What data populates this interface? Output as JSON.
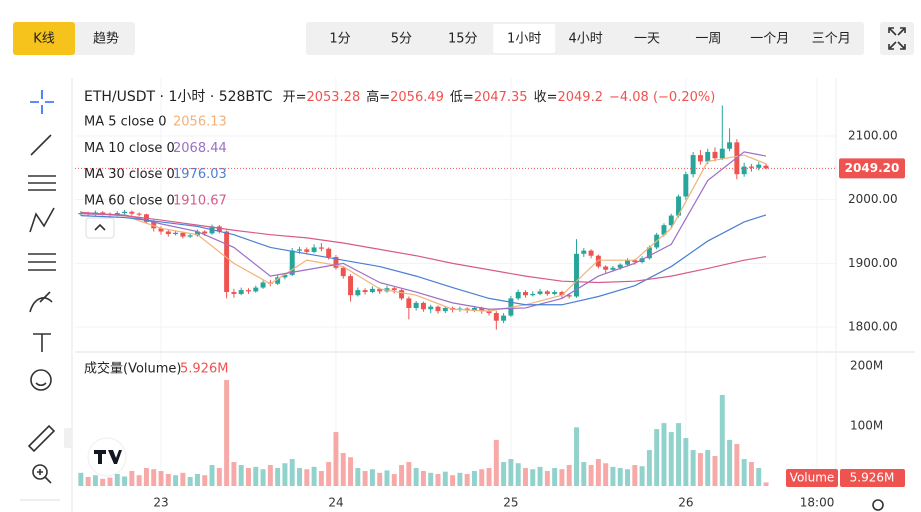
{
  "tabs": {
    "modes": [
      "K线",
      "趋势"
    ],
    "active_mode": 0,
    "timeframes": [
      "1分",
      "5分",
      "15分",
      "1小时",
      "4小时",
      "一天",
      "一周",
      "一个月",
      "三个月"
    ],
    "active_timeframe": 3
  },
  "chart_data": {
    "type": "candlestick",
    "header": {
      "symbol": "ETH/USDT · 1小时 · 528BTC",
      "ohlc_labels": [
        "开=",
        "高=",
        "低=",
        "收="
      ],
      "change": "−4.08 (−0.20%)"
    },
    "up_color": "#26a69a",
    "down_color": "#ef5350",
    "xlim": [
      -0.8,
      103.6
    ],
    "xticks": [
      {
        "value": 11,
        "label": "23"
      },
      {
        "value": 35,
        "label": "24"
      },
      {
        "value": 59,
        "label": "25"
      },
      {
        "value": 83,
        "label": "26"
      },
      {
        "value": 101,
        "label": "18:00"
      }
    ],
    "ylim": [
      1764,
      2191
    ],
    "yticks": [
      {
        "value": 1800,
        "label": "1800.00"
      },
      {
        "value": 1900,
        "label": "1900.00"
      },
      {
        "value": 2000,
        "label": "2000.00"
      },
      {
        "value": 2100,
        "label": "2100.00"
      }
    ],
    "grid": true,
    "last_price_label": "2049.20",
    "candles": [
      [
        1977,
        1982,
        1975,
        1979
      ],
      [
        1979,
        1981,
        1974,
        1977
      ],
      [
        1977,
        1983,
        1975,
        1980
      ],
      [
        1980,
        1982,
        1975,
        1978
      ],
      [
        1978,
        1980,
        1973,
        1976
      ],
      [
        1976,
        1982,
        1974,
        1979
      ],
      [
        1979,
        1984,
        1977,
        1981
      ],
      [
        1981,
        1983,
        1975,
        1978
      ],
      [
        1978,
        1980,
        1974,
        1977
      ],
      [
        1977,
        1978,
        1962,
        1965
      ],
      [
        1965,
        1968,
        1950,
        1955
      ],
      [
        1955,
        1958,
        1945,
        1950
      ],
      [
        1950,
        1953,
        1942,
        1946
      ],
      [
        1946,
        1951,
        1944,
        1948
      ],
      [
        1948,
        1950,
        1939,
        1942
      ],
      [
        1942,
        1947,
        1940,
        1944
      ],
      [
        1944,
        1953,
        1942,
        1950
      ],
      [
        1950,
        1952,
        1943,
        1947
      ],
      [
        1947,
        1961,
        1945,
        1958
      ],
      [
        1958,
        1960,
        1947,
        1950
      ],
      [
        1950,
        1952,
        1845,
        1855
      ],
      [
        1855,
        1860,
        1846,
        1852
      ],
      [
        1852,
        1862,
        1850,
        1858
      ],
      [
        1858,
        1861,
        1852,
        1856
      ],
      [
        1856,
        1865,
        1854,
        1862
      ],
      [
        1862,
        1873,
        1860,
        1870
      ],
      [
        1870,
        1874,
        1864,
        1868
      ],
      [
        1868,
        1881,
        1866,
        1878
      ],
      [
        1878,
        1885,
        1875,
        1882
      ],
      [
        1882,
        1924,
        1880,
        1920
      ],
      [
        1920,
        1926,
        1915,
        1922
      ],
      [
        1922,
        1925,
        1914,
        1918
      ],
      [
        1918,
        1930,
        1916,
        1925
      ],
      [
        1925,
        1932,
        1919,
        1923
      ],
      [
        1923,
        1925,
        1906,
        1910
      ],
      [
        1910,
        1913,
        1890,
        1893
      ],
      [
        1893,
        1896,
        1876,
        1880
      ],
      [
        1880,
        1883,
        1840,
        1850
      ],
      [
        1850,
        1862,
        1848,
        1858
      ],
      [
        1858,
        1861,
        1851,
        1855
      ],
      [
        1855,
        1864,
        1853,
        1860
      ],
      [
        1860,
        1862,
        1852,
        1856
      ],
      [
        1856,
        1865,
        1854,
        1861
      ],
      [
        1861,
        1863,
        1853,
        1858
      ],
      [
        1858,
        1860,
        1842,
        1845
      ],
      [
        1845,
        1848,
        1812,
        1830
      ],
      [
        1830,
        1841,
        1826,
        1838
      ],
      [
        1838,
        1840,
        1824,
        1828
      ],
      [
        1828,
        1835,
        1822,
        1832
      ],
      [
        1832,
        1834,
        1821,
        1825
      ],
      [
        1825,
        1833,
        1822,
        1830
      ],
      [
        1830,
        1832,
        1823,
        1827
      ],
      [
        1827,
        1832,
        1824,
        1829
      ],
      [
        1829,
        1831,
        1822,
        1826
      ],
      [
        1826,
        1833,
        1824,
        1830
      ],
      [
        1830,
        1832,
        1821,
        1825
      ],
      [
        1825,
        1828,
        1818,
        1822
      ],
      [
        1822,
        1825,
        1796,
        1810
      ],
      [
        1810,
        1822,
        1806,
        1818
      ],
      [
        1818,
        1849,
        1816,
        1845
      ],
      [
        1845,
        1859,
        1842,
        1855
      ],
      [
        1855,
        1858,
        1846,
        1850
      ],
      [
        1850,
        1856,
        1848,
        1852
      ],
      [
        1852,
        1860,
        1850,
        1856
      ],
      [
        1856,
        1858,
        1849,
        1852
      ],
      [
        1852,
        1858,
        1850,
        1855
      ],
      [
        1855,
        1857,
        1846,
        1850
      ],
      [
        1850,
        1853,
        1845,
        1848
      ],
      [
        1848,
        1938,
        1846,
        1915
      ],
      [
        1915,
        1924,
        1910,
        1920
      ],
      [
        1920,
        1922,
        1908,
        1912
      ],
      [
        1912,
        1914,
        1892,
        1895
      ],
      [
        1895,
        1897,
        1885,
        1890
      ],
      [
        1890,
        1896,
        1887,
        1893
      ],
      [
        1893,
        1900,
        1890,
        1898
      ],
      [
        1898,
        1908,
        1895,
        1905
      ],
      [
        1905,
        1907,
        1898,
        1902
      ],
      [
        1902,
        1911,
        1900,
        1908
      ],
      [
        1908,
        1928,
        1906,
        1925
      ],
      [
        1925,
        1948,
        1922,
        1945
      ],
      [
        1945,
        1963,
        1942,
        1960
      ],
      [
        1960,
        1978,
        1956,
        1975
      ],
      [
        1975,
        2008,
        1972,
        2005
      ],
      [
        2005,
        2044,
        2000,
        2040
      ],
      [
        2040,
        2075,
        2035,
        2070
      ],
      [
        2070,
        2078,
        2055,
        2060
      ],
      [
        2060,
        2080,
        2056,
        2075
      ],
      [
        2075,
        2082,
        2060,
        2065
      ],
      [
        2065,
        2148,
        2062,
        2080
      ],
      [
        2080,
        2112,
        2076,
        2090
      ],
      [
        2090,
        2095,
        2032,
        2040
      ],
      [
        2040,
        2058,
        2036,
        2052
      ],
      [
        2052,
        2056,
        2044,
        2050
      ],
      [
        2050,
        2059,
        2046,
        2055
      ],
      [
        2053.28,
        2056.49,
        2047.35,
        2049.2
      ]
    ],
    "series": [
      {
        "name": "MA 5 close 0",
        "color": "#f0b27a",
        "x": [
          0,
          6,
          11,
          16,
          21,
          26,
          31,
          36,
          41,
          46,
          51,
          56,
          61,
          66,
          71,
          76,
          81,
          86,
          91,
          94
        ],
        "values": [
          1978,
          1975,
          1955,
          1945,
          1900,
          1868,
          1905,
          1895,
          1860,
          1850,
          1828,
          1825,
          1835,
          1850,
          1905,
          1905,
          1955,
          2060,
          2070,
          2056.13
        ]
      },
      {
        "name": "MA 10 close 0",
        "color": "#9c6fc4",
        "x": [
          0,
          6,
          11,
          16,
          21,
          26,
          31,
          36,
          41,
          46,
          51,
          56,
          61,
          66,
          71,
          76,
          81,
          86,
          91,
          94
        ],
        "values": [
          1978,
          1976,
          1962,
          1950,
          1925,
          1880,
          1890,
          1900,
          1870,
          1855,
          1838,
          1828,
          1830,
          1845,
          1880,
          1900,
          1930,
          2030,
          2075,
          2068.44
        ]
      },
      {
        "name": "MA 30 close 0",
        "color": "#4a7fd4",
        "x": [
          0,
          6,
          11,
          16,
          21,
          26,
          31,
          36,
          41,
          46,
          51,
          56,
          61,
          66,
          71,
          76,
          81,
          86,
          91,
          94
        ],
        "values": [
          1975,
          1972,
          1965,
          1958,
          1945,
          1925,
          1915,
          1905,
          1895,
          1880,
          1862,
          1845,
          1835,
          1835,
          1848,
          1865,
          1895,
          1935,
          1965,
          1976.03
        ]
      },
      {
        "name": "MA 60 close 0",
        "color": "#d65b8a",
        "x": [
          0,
          6,
          11,
          16,
          21,
          26,
          31,
          36,
          41,
          46,
          51,
          56,
          61,
          66,
          71,
          76,
          81,
          86,
          91,
          94
        ],
        "values": [
          1980,
          1975,
          1968,
          1960,
          1952,
          1945,
          1940,
          1932,
          1922,
          1912,
          1900,
          1890,
          1880,
          1872,
          1870,
          1872,
          1880,
          1892,
          1905,
          1910.67
        ]
      }
    ],
    "volume": {
      "title": "成交量(Volume)",
      "axis_label": "Volume",
      "last_label": "5.926M",
      "ylim": [
        0,
        217
      ],
      "yticks": [
        {
          "value": 100,
          "label": "100M"
        },
        {
          "value": 200,
          "label": "200M"
        }
      ],
      "values": [
        22,
        15,
        18,
        12,
        14,
        20,
        16,
        25,
        18,
        30,
        28,
        25,
        20,
        18,
        22,
        15,
        20,
        18,
        35,
        30,
        177,
        40,
        35,
        30,
        32,
        28,
        35,
        30,
        38,
        45,
        30,
        28,
        32,
        25,
        40,
        90,
        55,
        48,
        30,
        25,
        28,
        22,
        26,
        20,
        35,
        40,
        30,
        25,
        22,
        20,
        24,
        18,
        22,
        20,
        25,
        28,
        30,
        77,
        40,
        45,
        38,
        30,
        28,
        32,
        25,
        30,
        28,
        35,
        98,
        40,
        35,
        45,
        38,
        32,
        30,
        28,
        35,
        33,
        60,
        95,
        105,
        90,
        105,
        80,
        60,
        55,
        60,
        50,
        152,
        77,
        70,
        45,
        40,
        30,
        5.926
      ]
    }
  }
}
